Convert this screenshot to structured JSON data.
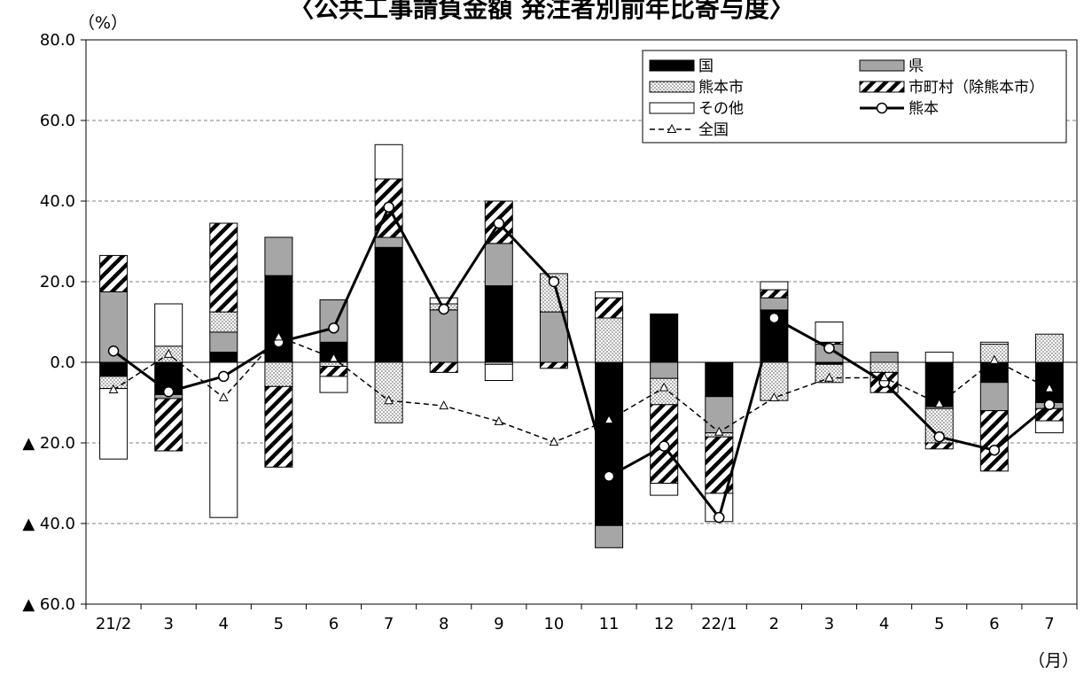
{
  "header": {
    "title": "〈公共工事請負金額 発注者別前年比寄与度〉"
  },
  "chart_data": {
    "type": "bar",
    "stacked": true,
    "title": "〈公共工事請負金額 発注者別前年比寄与度〉",
    "y_unit": "（%）",
    "x_unit": "（月）",
    "ylim": [
      -60,
      80
    ],
    "y_ticks": [
      {
        "value": 80,
        "label": "80.0"
      },
      {
        "value": 60,
        "label": "60.0"
      },
      {
        "value": 40,
        "label": "40.0"
      },
      {
        "value": 20,
        "label": "20.0"
      },
      {
        "value": 0,
        "label": "0.0"
      },
      {
        "value": -20,
        "label": "▲ 20.0"
      },
      {
        "value": -40,
        "label": "▲ 40.0"
      },
      {
        "value": -60,
        "label": "▲ 60.0"
      }
    ],
    "categories": [
      "21/2",
      "3",
      "4",
      "5",
      "6",
      "7",
      "8",
      "9",
      "10",
      "11",
      "12",
      "22/1",
      "2",
      "3",
      "4",
      "5",
      "6",
      "7"
    ],
    "grid": "horizontal dashed",
    "legend_position": "top-right",
    "series": [
      {
        "name": "国",
        "kind": "bar",
        "pattern": "solid-black",
        "values": [
          -3.5,
          -8,
          2.5,
          21.5,
          5,
          28.5,
          0,
          19,
          0,
          -40.5,
          12,
          -8.5,
          13,
          -0.5,
          0,
          -11,
          -5,
          -10
        ]
      },
      {
        "name": "県",
        "kind": "bar",
        "pattern": "gray",
        "values": [
          17.5,
          -1,
          5,
          9.5,
          10.5,
          2.5,
          13,
          10.5,
          12.5,
          -5.5,
          -4,
          -9,
          3,
          4.5,
          2.5,
          -0.5,
          -7,
          -1.5
        ]
      },
      {
        "name": "熊本市",
        "kind": "bar",
        "pattern": "dots",
        "values": [
          -3,
          4,
          5,
          -6,
          -1,
          -15,
          1.5,
          -0.5,
          9.5,
          11,
          -6.5,
          -1,
          -9.5,
          -4.5,
          -2.5,
          -8.5,
          4.5,
          7
        ]
      },
      {
        "name": "市町村（除熊本市）",
        "kind": "bar",
        "pattern": "hatch",
        "values": [
          9,
          -13,
          22,
          -20,
          -2.5,
          14.5,
          -2.5,
          10.5,
          -1.5,
          5,
          -19.5,
          -14,
          2,
          0.5,
          -5,
          -1.5,
          -15,
          -3
        ]
      },
      {
        "name": "その他",
        "kind": "bar",
        "pattern": "white",
        "values": [
          -17.5,
          10.5,
          -38.5,
          0,
          -4,
          8.5,
          1.5,
          -4,
          0,
          1.5,
          -3,
          -7,
          2,
          5,
          0,
          2.5,
          0.5,
          -3
        ]
      },
      {
        "name": "熊本",
        "kind": "line",
        "pattern": "solid-circle",
        "values": [
          2.8,
          -7.3,
          -3.5,
          5.0,
          8.5,
          38.5,
          13.2,
          34.5,
          20.0,
          -28.3,
          -20.8,
          -38.5,
          11.0,
          3.5,
          -5.0,
          -18.5,
          -21.8,
          -10.5
        ]
      },
      {
        "name": "全国",
        "kind": "line",
        "pattern": "dashed-triangle",
        "values": [
          -6.8,
          2.0,
          -8.8,
          6.3,
          1.0,
          -9.5,
          -10.8,
          -14.7,
          -19.8,
          -14.3,
          -6.3,
          -17.3,
          -8.8,
          -3.9,
          -3.8,
          -10.3,
          0.5,
          -6.5
        ]
      }
    ]
  }
}
